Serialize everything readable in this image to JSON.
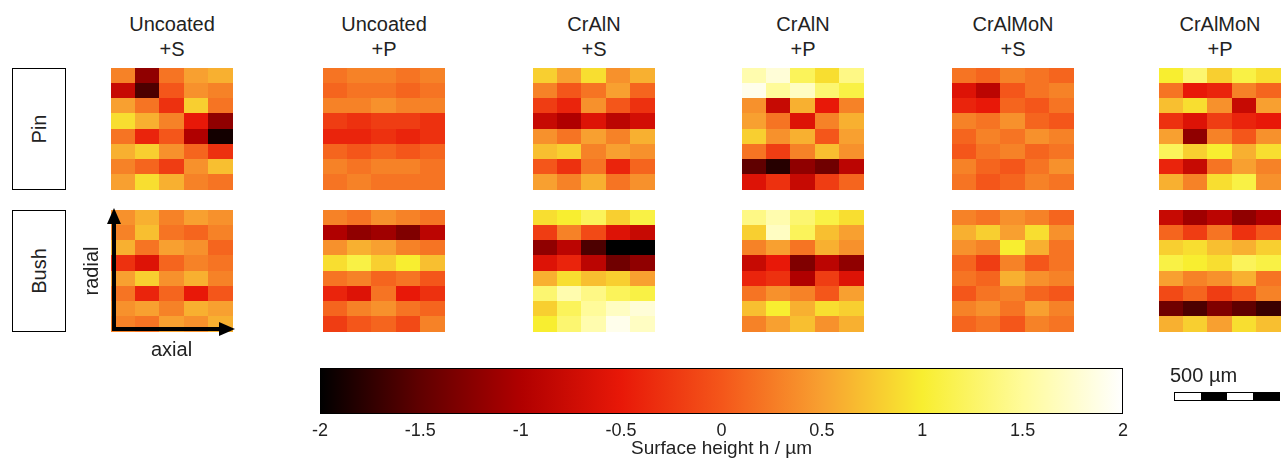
{
  "chart_data": {
    "type": "heatmap",
    "tick_labels": false,
    "columns": [
      "Uncoated +S",
      "Uncoated +P",
      "CrAlN +S",
      "CrAlN +P",
      "CrAlMoN +S",
      "CrAlMoN +P"
    ],
    "rows": [
      "Pin",
      "Bush"
    ],
    "axis_labels": {
      "x": "axial",
      "y": "radial"
    },
    "scale_bar": "500 µm",
    "colorbar": {
      "label": "Surface height h / µm",
      "range": [
        -2,
        2
      ],
      "ticks": [
        -2,
        -1.5,
        -1,
        -0.5,
        0,
        0.5,
        1,
        1.5,
        2
      ]
    },
    "cells": [
      [
        [
          [
            0.3,
            -1.2,
            0.2,
            0.5,
            0.6
          ],
          [
            -0.8,
            -1.6,
            0.0,
            0.4,
            0.3
          ],
          [
            0.5,
            0.2,
            -0.3,
            0.8,
            0.2
          ],
          [
            0.9,
            0.6,
            0.3,
            -0.5,
            -1.2
          ],
          [
            0.2,
            -0.4,
            0.0,
            -1.0,
            -1.9
          ],
          [
            0.6,
            0.8,
            0.4,
            0.1,
            -0.3
          ],
          [
            0.3,
            0.1,
            -0.2,
            0.4,
            0.7
          ],
          [
            0.5,
            0.9,
            0.6,
            0.3,
            0.2
          ]
        ],
        [
          [
            0.2,
            0.3,
            0.3,
            0.2,
            0.3
          ],
          [
            0.1,
            0.2,
            0.2,
            0.1,
            0.2
          ],
          [
            0.3,
            0.3,
            0.4,
            0.3,
            0.3
          ],
          [
            -0.2,
            -0.3,
            -0.2,
            -0.2,
            -0.3
          ],
          [
            -0.4,
            -0.4,
            -0.3,
            -0.4,
            -0.3
          ],
          [
            0.1,
            0.0,
            0.1,
            0.0,
            0.1
          ],
          [
            0.3,
            0.2,
            0.3,
            0.3,
            0.2
          ],
          [
            0.2,
            0.3,
            0.2,
            0.2,
            0.2
          ]
        ],
        [
          [
            0.8,
            0.5,
            0.9,
            0.4,
            0.6
          ],
          [
            0.3,
            0.0,
            0.2,
            0.5,
            0.1
          ],
          [
            -0.2,
            -0.4,
            0.4,
            0.0,
            -0.3
          ],
          [
            -0.8,
            -1.0,
            -0.6,
            -0.9,
            -0.7
          ],
          [
            0.4,
            0.2,
            0.5,
            0.3,
            0.6
          ],
          [
            0.7,
            0.8,
            0.3,
            0.5,
            0.4
          ],
          [
            0.0,
            -0.3,
            0.2,
            -0.4,
            0.1
          ],
          [
            0.5,
            0.3,
            0.6,
            0.2,
            0.4
          ]
        ],
        [
          [
            1.6,
            1.8,
            1.2,
            0.9,
            1.4
          ],
          [
            1.9,
            1.5,
            1.7,
            1.3,
            1.1
          ],
          [
            0.4,
            -0.8,
            0.6,
            -0.5,
            0.3
          ],
          [
            0.5,
            0.2,
            -0.6,
            0.3,
            0.6
          ],
          [
            0.8,
            0.4,
            0.6,
            0.0,
            0.5
          ],
          [
            0.2,
            -0.2,
            0.3,
            0.7,
            0.4
          ],
          [
            -1.5,
            -1.8,
            -1.2,
            -1.4,
            -0.9
          ],
          [
            -0.6,
            -0.3,
            -0.8,
            -0.2,
            0.1
          ]
        ],
        [
          [
            0.2,
            0.1,
            0.3,
            0.2,
            0.1
          ],
          [
            -0.6,
            -0.9,
            0.0,
            0.2,
            0.3
          ],
          [
            -0.4,
            -0.5,
            0.1,
            0.0,
            0.2
          ],
          [
            0.3,
            0.2,
            0.4,
            0.1,
            0.0
          ],
          [
            0.1,
            0.3,
            0.2,
            0.4,
            0.3
          ],
          [
            0.0,
            0.2,
            0.3,
            0.1,
            0.2
          ],
          [
            0.3,
            0.1,
            0.0,
            0.2,
            0.4
          ],
          [
            0.2,
            0.0,
            0.1,
            0.3,
            0.2
          ]
        ],
        [
          [
            1.0,
            1.3,
            0.8,
            1.1,
            0.9
          ],
          [
            0.2,
            -0.5,
            -0.4,
            0.3,
            0.1
          ],
          [
            0.7,
            0.9,
            0.4,
            -0.8,
            0.5
          ],
          [
            -0.3,
            -0.6,
            -0.2,
            -0.4,
            -0.5
          ],
          [
            0.5,
            -1.2,
            0.3,
            0.0,
            0.4
          ],
          [
            1.2,
            0.8,
            1.0,
            0.6,
            0.9
          ],
          [
            -0.4,
            -0.8,
            0.2,
            0.5,
            0.3
          ],
          [
            0.6,
            0.3,
            0.9,
            1.1,
            0.4
          ]
        ]
      ],
      [
        [
          [
            0.4,
            0.6,
            0.3,
            0.5,
            0.4
          ],
          [
            0.3,
            0.7,
            0.2,
            0.1,
            0.3
          ],
          [
            0.6,
            0.2,
            0.5,
            0.4,
            0.1
          ],
          [
            -0.3,
            -0.6,
            0.1,
            0.3,
            0.2
          ],
          [
            0.5,
            0.8,
            0.4,
            0.6,
            0.3
          ],
          [
            0.2,
            -0.4,
            0.1,
            -0.5,
            0.0
          ],
          [
            0.4,
            0.5,
            0.3,
            0.6,
            0.5
          ],
          [
            0.3,
            0.2,
            0.5,
            0.4,
            0.6
          ]
        ],
        [
          [
            0.3,
            0.2,
            0.4,
            0.3,
            0.2
          ],
          [
            -1.0,
            -1.2,
            -1.1,
            -1.3,
            -0.9
          ],
          [
            0.4,
            0.6,
            0.5,
            0.3,
            0.2
          ],
          [
            0.9,
            1.1,
            0.8,
            1.0,
            0.7
          ],
          [
            0.2,
            0.3,
            0.1,
            0.2,
            0.0
          ],
          [
            -0.4,
            -0.6,
            0.2,
            -0.5,
            -0.3
          ],
          [
            0.1,
            0.3,
            0.4,
            0.2,
            0.1
          ],
          [
            -0.2,
            0.0,
            0.1,
            -0.1,
            0.3
          ]
        ],
        [
          [
            0.9,
            1.0,
            1.2,
            0.8,
            1.1
          ],
          [
            -0.2,
            0.3,
            -0.1,
            -0.6,
            -0.8
          ],
          [
            -1.2,
            -0.9,
            -1.6,
            -2.0,
            -2.0
          ],
          [
            -0.6,
            -0.4,
            -0.9,
            -1.4,
            -1.2
          ],
          [
            0.6,
            0.9,
            0.7,
            0.8,
            0.5
          ],
          [
            1.3,
            1.6,
            1.4,
            1.2,
            1.1
          ],
          [
            0.8,
            1.2,
            1.5,
            1.7,
            1.8
          ],
          [
            1.0,
            1.3,
            1.6,
            1.9,
            1.7
          ]
        ],
        [
          [
            1.4,
            1.6,
            1.3,
            1.1,
            0.9
          ],
          [
            0.8,
            1.7,
            1.2,
            0.7,
            0.5
          ],
          [
            0.3,
            0.5,
            0.2,
            0.6,
            0.4
          ],
          [
            -0.8,
            -0.5,
            -1.3,
            -0.9,
            -1.2
          ],
          [
            -0.4,
            -0.3,
            -1.0,
            -0.2,
            -0.6
          ],
          [
            0.2,
            0.4,
            0.3,
            0.0,
            0.5
          ],
          [
            0.7,
            1.0,
            0.6,
            0.9,
            0.8
          ],
          [
            0.3,
            0.5,
            0.7,
            0.4,
            0.6
          ]
        ],
        [
          [
            0.3,
            0.2,
            0.4,
            0.3,
            0.1
          ],
          [
            0.6,
            0.8,
            0.5,
            0.9,
            0.4
          ],
          [
            0.4,
            0.3,
            1.0,
            0.6,
            0.2
          ],
          [
            0.1,
            -0.2,
            0.3,
            0.0,
            0.2
          ],
          [
            0.2,
            0.1,
            0.6,
            0.4,
            0.3
          ],
          [
            0.0,
            0.2,
            0.3,
            0.1,
            0.0
          ],
          [
            0.3,
            0.4,
            0.2,
            0.5,
            0.3
          ],
          [
            0.1,
            0.2,
            0.0,
            0.3,
            0.2
          ]
        ],
        [
          [
            -0.8,
            -1.1,
            -0.9,
            -1.2,
            -1.0
          ],
          [
            0.1,
            -0.2,
            0.2,
            -0.3,
            0.0
          ],
          [
            0.8,
            0.9,
            0.7,
            0.6,
            0.8
          ],
          [
            1.1,
            1.0,
            0.9,
            1.2,
            1.1
          ],
          [
            0.5,
            0.3,
            0.4,
            0.6,
            0.2
          ],
          [
            -0.1,
            0.1,
            -0.2,
            0.0,
            0.3
          ],
          [
            -1.4,
            -1.6,
            -1.3,
            -1.5,
            -1.7
          ],
          [
            0.6,
            0.8,
            0.5,
            0.9,
            0.7
          ]
        ]
      ]
    ]
  }
}
